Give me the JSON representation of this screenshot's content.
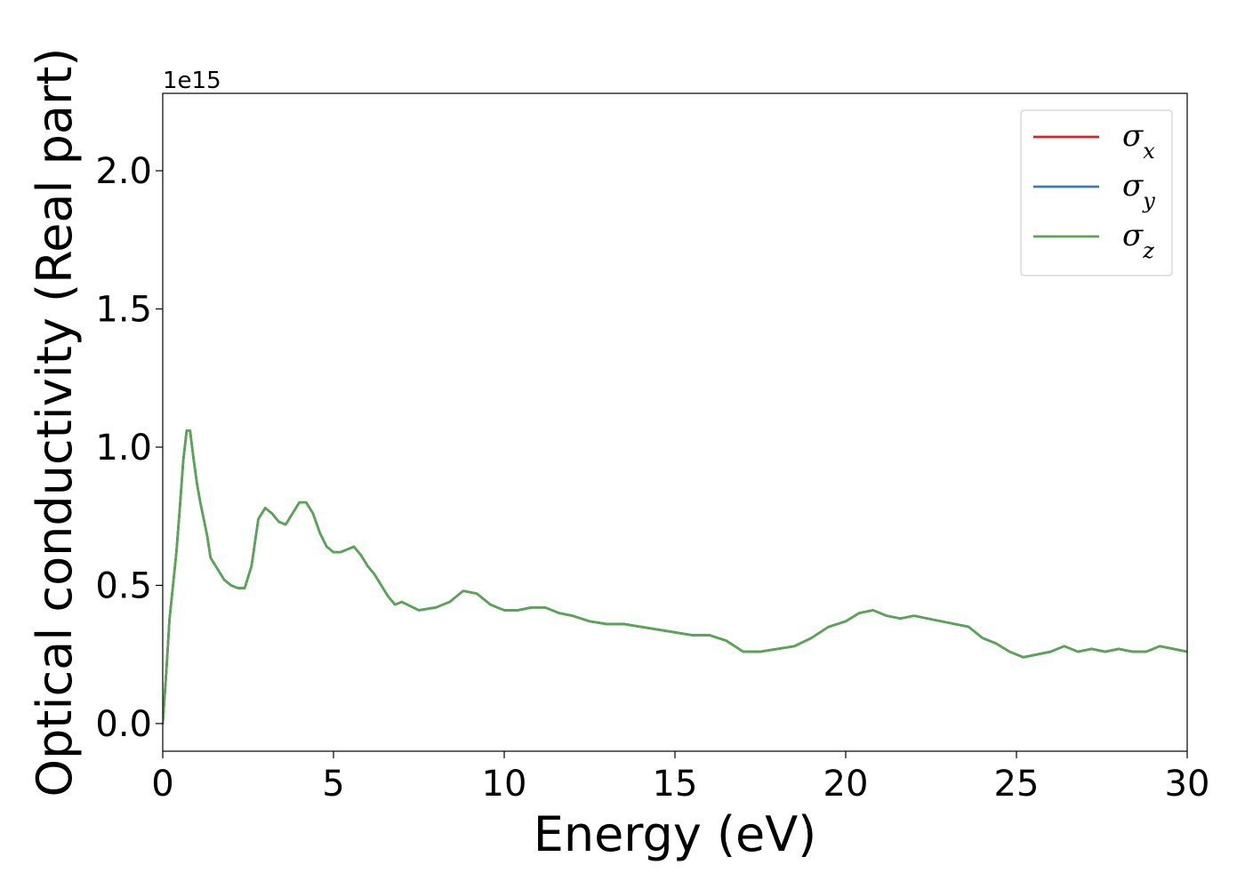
{
  "chart_data": {
    "type": "line",
    "title": "",
    "xlabel": "Energy (eV)",
    "ylabel": "Optical conductivity (Real part)",
    "y_offset_label": "1e15",
    "y_scale_factor": 1000000000000000.0,
    "xlim": [
      0,
      30
    ],
    "ylim": [
      -0.1,
      2.28
    ],
    "xticks": [
      0,
      5,
      10,
      15,
      20,
      25,
      30
    ],
    "xtick_labels": [
      "0",
      "5",
      "10",
      "15",
      "20",
      "25",
      "30"
    ],
    "yticks": [
      0.0,
      0.5,
      1.0,
      1.5,
      2.0
    ],
    "ytick_labels": [
      "0.0",
      "0.5",
      "1.0",
      "1.5",
      "2.0"
    ],
    "grid": false,
    "legend_position": "top-right",
    "x": [
      0,
      0.1,
      0.2,
      0.3,
      0.4,
      0.5,
      0.6,
      0.7,
      0.8,
      0.9,
      1.0,
      1.1,
      1.2,
      1.3,
      1.4,
      1.6,
      1.8,
      2.0,
      2.2,
      2.4,
      2.6,
      2.8,
      3.0,
      3.2,
      3.4,
      3.6,
      3.8,
      4.0,
      4.2,
      4.4,
      4.6,
      4.8,
      5.0,
      5.2,
      5.4,
      5.6,
      5.8,
      6.0,
      6.2,
      6.4,
      6.6,
      6.8,
      7.0,
      7.5,
      8.0,
      8.4,
      8.8,
      9.2,
      9.6,
      10.0,
      10.4,
      10.8,
      11.2,
      11.6,
      12.0,
      12.5,
      13.0,
      13.5,
      14.0,
      14.5,
      15.0,
      15.5,
      16.0,
      16.5,
      17.0,
      17.5,
      18.0,
      18.5,
      19.0,
      19.5,
      20.0,
      20.4,
      20.8,
      21.2,
      21.6,
      22.0,
      22.4,
      22.8,
      23.2,
      23.6,
      24.0,
      24.4,
      24.8,
      25.2,
      25.6,
      26.0,
      26.4,
      26.8,
      27.2,
      27.6,
      28.0,
      28.4,
      28.8,
      29.2,
      29.6,
      30.0
    ],
    "series": [
      {
        "name": "σx",
        "legend_base": "σ",
        "legend_sub": "x",
        "color": "#d62728",
        "values": [
          0.0,
          0.18,
          0.38,
          0.5,
          0.62,
          0.78,
          0.95,
          1.06,
          1.06,
          0.96,
          0.87,
          0.8,
          0.74,
          0.68,
          0.6,
          0.56,
          0.52,
          0.5,
          0.49,
          0.49,
          0.57,
          0.74,
          0.78,
          0.76,
          0.73,
          0.72,
          0.76,
          0.8,
          0.8,
          0.76,
          0.69,
          0.64,
          0.62,
          0.62,
          0.63,
          0.64,
          0.61,
          0.57,
          0.54,
          0.5,
          0.46,
          0.43,
          0.44,
          0.41,
          0.42,
          0.44,
          0.48,
          0.47,
          0.43,
          0.41,
          0.41,
          0.42,
          0.42,
          0.4,
          0.39,
          0.37,
          0.36,
          0.36,
          0.35,
          0.34,
          0.33,
          0.32,
          0.32,
          0.3,
          0.26,
          0.26,
          0.27,
          0.28,
          0.31,
          0.35,
          0.37,
          0.4,
          0.41,
          0.39,
          0.38,
          0.39,
          0.38,
          0.37,
          0.36,
          0.35,
          0.31,
          0.29,
          0.26,
          0.24,
          0.25,
          0.26,
          0.28,
          0.26,
          0.27,
          0.26,
          0.27,
          0.26,
          0.26,
          0.28,
          0.27,
          0.26
        ]
      },
      {
        "name": "σy",
        "legend_base": "σ",
        "legend_sub": "y",
        "color": "#3a7cb8",
        "values": [
          0.0,
          0.18,
          0.38,
          0.5,
          0.62,
          0.78,
          0.95,
          1.06,
          1.06,
          0.96,
          0.87,
          0.8,
          0.74,
          0.68,
          0.6,
          0.56,
          0.52,
          0.5,
          0.49,
          0.49,
          0.57,
          0.74,
          0.78,
          0.76,
          0.73,
          0.72,
          0.76,
          0.8,
          0.8,
          0.76,
          0.69,
          0.64,
          0.62,
          0.62,
          0.63,
          0.64,
          0.61,
          0.57,
          0.54,
          0.5,
          0.46,
          0.43,
          0.44,
          0.41,
          0.42,
          0.44,
          0.48,
          0.47,
          0.43,
          0.41,
          0.41,
          0.42,
          0.42,
          0.4,
          0.39,
          0.37,
          0.36,
          0.36,
          0.35,
          0.34,
          0.33,
          0.32,
          0.32,
          0.3,
          0.26,
          0.26,
          0.27,
          0.28,
          0.31,
          0.35,
          0.37,
          0.4,
          0.41,
          0.39,
          0.38,
          0.39,
          0.38,
          0.37,
          0.36,
          0.35,
          0.31,
          0.29,
          0.26,
          0.24,
          0.25,
          0.26,
          0.28,
          0.26,
          0.27,
          0.26,
          0.27,
          0.26,
          0.26,
          0.28,
          0.27,
          0.26
        ]
      },
      {
        "name": "σz",
        "legend_base": "σ",
        "legend_sub": "z",
        "color": "#55a850",
        "values": [
          0.0,
          0.18,
          0.38,
          0.5,
          0.62,
          0.78,
          0.95,
          1.06,
          1.06,
          0.96,
          0.87,
          0.8,
          0.74,
          0.68,
          0.6,
          0.56,
          0.52,
          0.5,
          0.49,
          0.49,
          0.57,
          0.74,
          0.78,
          0.76,
          0.73,
          0.72,
          0.76,
          0.8,
          0.8,
          0.76,
          0.69,
          0.64,
          0.62,
          0.62,
          0.63,
          0.64,
          0.61,
          0.57,
          0.54,
          0.5,
          0.46,
          0.43,
          0.44,
          0.41,
          0.42,
          0.44,
          0.48,
          0.47,
          0.43,
          0.41,
          0.41,
          0.42,
          0.42,
          0.4,
          0.39,
          0.37,
          0.36,
          0.36,
          0.35,
          0.34,
          0.33,
          0.32,
          0.32,
          0.3,
          0.26,
          0.26,
          0.27,
          0.28,
          0.31,
          0.35,
          0.37,
          0.4,
          0.41,
          0.39,
          0.38,
          0.39,
          0.38,
          0.37,
          0.36,
          0.35,
          0.31,
          0.29,
          0.26,
          0.24,
          0.25,
          0.26,
          0.28,
          0.26,
          0.27,
          0.26,
          0.27,
          0.26,
          0.26,
          0.28,
          0.27,
          0.26
        ]
      }
    ]
  }
}
